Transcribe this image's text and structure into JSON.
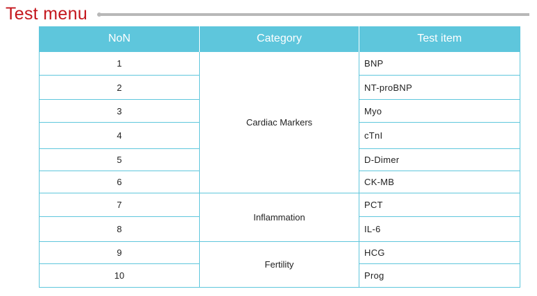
{
  "title": "Test menu",
  "colors": {
    "title": "#c4161c",
    "header_bg": "#5ec6dc",
    "rule": "#b8b8b8"
  },
  "table": {
    "headers": [
      "NoN",
      "Category",
      "Test item"
    ],
    "groups": [
      {
        "category": "Cardiac Markers",
        "rows": [
          {
            "no": "1",
            "item": "BNP"
          },
          {
            "no": "2",
            "item": "NT-proBNP"
          },
          {
            "no": "3",
            "item": "Myo"
          },
          {
            "no": "4",
            "item": "cTnI"
          },
          {
            "no": "5",
            "item": "D-Dimer"
          },
          {
            "no": "6",
            "item": "CK-MB"
          }
        ]
      },
      {
        "category": "Inflammation",
        "rows": [
          {
            "no": "7",
            "item": "PCT"
          },
          {
            "no": "8",
            "item": "IL-6"
          }
        ]
      },
      {
        "category": "Fertility",
        "rows": [
          {
            "no": "9",
            "item": "HCG"
          },
          {
            "no": "10",
            "item": "Prog"
          }
        ]
      }
    ]
  }
}
